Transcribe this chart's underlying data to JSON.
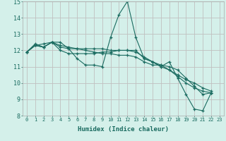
{
  "xlabel": "Humidex (Indice chaleur)",
  "ylabel": "",
  "background_color": "#d4f0ea",
  "plot_bg_color": "#d4f0ea",
  "grid_color": "#c0c0c0",
  "line_color": "#1a6b60",
  "xlim": [
    -0.5,
    23.5
  ],
  "ylim": [
    8,
    15
  ],
  "xticks": [
    0,
    1,
    2,
    3,
    4,
    5,
    6,
    7,
    8,
    9,
    10,
    11,
    12,
    13,
    14,
    15,
    16,
    17,
    18,
    19,
    20,
    21,
    22,
    23
  ],
  "yticks": [
    8,
    9,
    10,
    11,
    12,
    13,
    14,
    15
  ],
  "series": [
    [
      11.9,
      12.4,
      12.2,
      12.5,
      12.5,
      12.1,
      11.5,
      11.1,
      11.1,
      11.0,
      12.8,
      14.2,
      15.0,
      12.8,
      11.5,
      11.3,
      11.0,
      11.3,
      10.3,
      9.3,
      8.4,
      8.3,
      9.4
    ],
    [
      11.9,
      12.3,
      12.2,
      12.5,
      12.0,
      11.8,
      11.8,
      11.8,
      11.8,
      11.9,
      11.9,
      12.0,
      12.0,
      12.0,
      11.5,
      11.3,
      11.0,
      10.8,
      10.5,
      10.2,
      10.0,
      9.7,
      9.5
    ],
    [
      11.9,
      12.3,
      12.2,
      12.5,
      12.2,
      12.1,
      12.1,
      12.1,
      12.1,
      12.1,
      12.0,
      12.0,
      12.0,
      11.9,
      11.6,
      11.3,
      11.1,
      11.0,
      10.8,
      10.3,
      9.8,
      9.3,
      9.4
    ],
    [
      11.9,
      12.3,
      12.4,
      12.5,
      12.3,
      12.2,
      12.1,
      12.0,
      11.9,
      11.8,
      11.8,
      11.7,
      11.7,
      11.6,
      11.3,
      11.1,
      11.1,
      10.8,
      10.4,
      10.0,
      9.7,
      9.5,
      9.4
    ]
  ]
}
